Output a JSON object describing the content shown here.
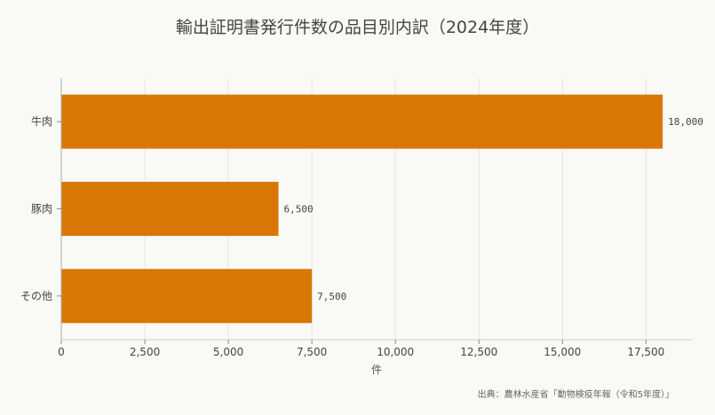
{
  "chart_data": {
    "type": "bar",
    "orientation": "horizontal",
    "title": "輸出証明書発行件数の品目別内訳（2024年度）",
    "categories": [
      "牛肉",
      "豚肉",
      "その他"
    ],
    "values": [
      18000,
      6500,
      7500
    ],
    "value_labels": [
      "18,000",
      "6,500",
      "7,500"
    ],
    "xlabel": "件",
    "ylabel": "",
    "xlim": [
      0,
      18900
    ],
    "xticks": [
      0,
      2500,
      5000,
      7500,
      10000,
      12500,
      15000,
      17500
    ],
    "xtick_labels": [
      "0",
      "2,500",
      "5,000",
      "7,500",
      "10,000",
      "12,500",
      "15,000",
      "17,500"
    ],
    "grid": true,
    "bar_color": "#d97706"
  },
  "source": "出典：農林水産省「動物検疫年報（令和5年度）」"
}
